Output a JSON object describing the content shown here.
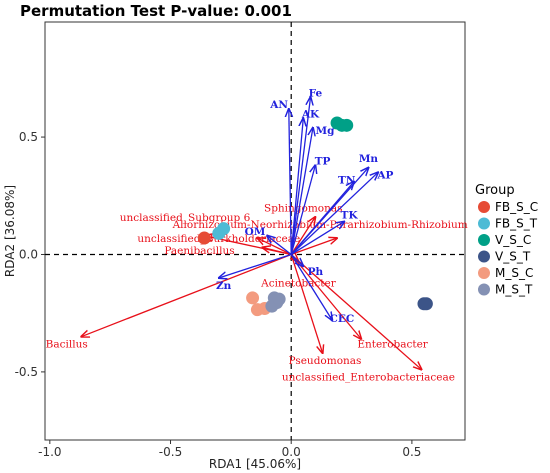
{
  "chart_data": {
    "type": "scatter",
    "title": "Permutation Test P-value: 0.001",
    "xlabel": "RDA1 [45.06%]",
    "ylabel": "RDA2 [36.08%]",
    "xlim": [
      -1.02,
      0.72
    ],
    "ylim": [
      -0.79,
      0.99
    ],
    "xticks": [
      -1.0,
      -0.5,
      0.0,
      0.5
    ],
    "yticks": [
      -0.5,
      0.0,
      0.5
    ],
    "xtick_labels": [
      "-1.0",
      "-0.5",
      "0.0",
      "0.5"
    ],
    "ytick_labels": [
      "-0.5",
      "0.0",
      "0.5"
    ],
    "reference_lines": {
      "x": 0,
      "y": 0,
      "style": "dashed"
    },
    "legend": {
      "title": "Group",
      "placement": "right",
      "entries": [
        {
          "name": "FB_S_C",
          "color": "#e64b35"
        },
        {
          "name": "FB_S_T",
          "color": "#4dbbd5"
        },
        {
          "name": "V_S_C",
          "color": "#00a087"
        },
        {
          "name": "V_S_T",
          "color": "#3c5488"
        },
        {
          "name": "M_S_C",
          "color": "#f39b7f"
        },
        {
          "name": "M_S_T",
          "color": "#8491b4"
        }
      ]
    },
    "sample_points": [
      {
        "group": "FB_S_C",
        "x": -0.36,
        "y": 0.07
      },
      {
        "group": "FB_S_T",
        "x": -0.3,
        "y": 0.09
      },
      {
        "group": "FB_S_T",
        "x": -0.28,
        "y": 0.11
      },
      {
        "group": "V_S_C",
        "x": 0.19,
        "y": 0.56
      },
      {
        "group": "V_S_C",
        "x": 0.21,
        "y": 0.55
      },
      {
        "group": "V_S_C",
        "x": 0.23,
        "y": 0.55
      },
      {
        "group": "V_S_T",
        "x": 0.56,
        "y": -0.21
      },
      {
        "group": "V_S_T",
        "x": 0.55,
        "y": -0.21
      },
      {
        "group": "M_S_C",
        "x": -0.16,
        "y": -0.185
      },
      {
        "group": "M_S_C",
        "x": -0.14,
        "y": -0.235
      },
      {
        "group": "M_S_C",
        "x": -0.11,
        "y": -0.23
      },
      {
        "group": "M_S_T",
        "x": -0.07,
        "y": -0.185
      },
      {
        "group": "M_S_T",
        "x": -0.06,
        "y": -0.205
      },
      {
        "group": "M_S_T",
        "x": -0.08,
        "y": -0.22
      },
      {
        "group": "M_S_T",
        "x": -0.05,
        "y": -0.19
      }
    ],
    "env_vectors": {
      "color": "#2222dd",
      "items": [
        {
          "name": "Fe",
          "x": 0.08,
          "y": 0.67,
          "lx": 0.1,
          "ly": 0.69
        },
        {
          "name": "AN",
          "x": -0.01,
          "y": 0.62,
          "lx": -0.05,
          "ly": 0.64
        },
        {
          "name": "AK",
          "x": 0.05,
          "y": 0.58,
          "lx": 0.08,
          "ly": 0.6
        },
        {
          "name": "Mg",
          "x": 0.09,
          "y": 0.54,
          "lx": 0.14,
          "ly": 0.53
        },
        {
          "name": "TP",
          "x": 0.1,
          "y": 0.38,
          "lx": 0.13,
          "ly": 0.4
        },
        {
          "name": "Mn",
          "x": 0.32,
          "y": 0.37,
          "lx": 0.32,
          "ly": 0.41
        },
        {
          "name": "AP",
          "x": 0.36,
          "y": 0.35,
          "lx": 0.39,
          "ly": 0.34
        },
        {
          "name": "TN",
          "x": 0.26,
          "y": 0.31,
          "lx": 0.23,
          "ly": 0.32
        },
        {
          "name": "TK",
          "x": 0.22,
          "y": 0.14,
          "lx": 0.24,
          "ly": 0.17
        },
        {
          "name": "OM",
          "x": -0.1,
          "y": 0.08,
          "lx": -0.15,
          "ly": 0.1
        },
        {
          "name": "Zn",
          "x": -0.3,
          "y": -0.1,
          "lx": -0.28,
          "ly": -0.13
        },
        {
          "name": "Ph",
          "x": 0.05,
          "y": -0.05,
          "lx": 0.1,
          "ly": -0.07
        },
        {
          "name": "CEC",
          "x": 0.17,
          "y": -0.28,
          "lx": 0.21,
          "ly": -0.27
        }
      ]
    },
    "species_vectors": {
      "color": "#e8101a",
      "items": [
        {
          "name": "Bacillus",
          "x": -0.87,
          "y": -0.35,
          "lx": -0.93,
          "ly": -0.38
        },
        {
          "name": "unclassified_Subgroup 6",
          "x": -0.36,
          "y": 0.08,
          "lx": -0.44,
          "ly": 0.16
        },
        {
          "name": "unclassified_Burkholderiaceae",
          "x": -0.14,
          "y": 0.07,
          "lx": -0.3,
          "ly": 0.07
        },
        {
          "name": "Paenibacillus",
          "x": -0.12,
          "y": 0.03,
          "lx": -0.38,
          "ly": 0.02
        },
        {
          "name": "Sphingomonas",
          "x": 0.1,
          "y": 0.16,
          "lx": 0.05,
          "ly": 0.2
        },
        {
          "name": "Allorhizobium-Neorhizobium-Pararhizobium-Rhizobium",
          "x": 0.19,
          "y": 0.07,
          "lx": 0.12,
          "ly": 0.13
        },
        {
          "name": "Acinetobacter",
          "x": 0.03,
          "y": -0.03,
          "lx": 0.03,
          "ly": -0.12
        },
        {
          "name": "Enterobacter",
          "x": 0.29,
          "y": -0.36,
          "lx": 0.42,
          "ly": -0.38
        },
        {
          "name": "Pseudomonas",
          "x": 0.13,
          "y": -0.42,
          "lx": 0.14,
          "ly": -0.45
        },
        {
          "name": "unclassified_Enterobacteriaceae",
          "x": 0.54,
          "y": -0.49,
          "lx": 0.32,
          "ly": -0.52
        }
      ]
    }
  }
}
